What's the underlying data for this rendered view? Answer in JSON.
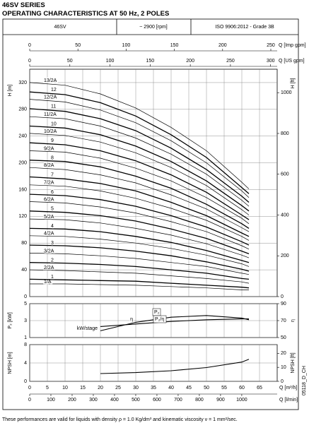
{
  "header": {
    "title": "46SV SERIES",
    "subtitle": "OPERATING CHARACTERISTICS AT 50 Hz, 2 POLES",
    "model": "46SV",
    "speed": "~ 2900 [rpm]",
    "standard": "ISO 9906:2012 - Grade 3B",
    "code": "05118_D_CH",
    "footnote": "These performances are valid for liquids with density ρ = 1.0 Kg/dm³ and kinematic viscosity ν = 1 mm²/sec."
  },
  "chart_data": [
    {
      "type": "line",
      "color": "#000",
      "xlim": [
        0,
        70
      ],
      "xticks": [
        0,
        5,
        10,
        15,
        20,
        25,
        30,
        35,
        40,
        45,
        50,
        55,
        60,
        65
      ],
      "ylabel": "H [m]",
      "ylim": [
        0,
        340
      ],
      "yticks": [
        0,
        40,
        80,
        120,
        160,
        200,
        240,
        280,
        320
      ],
      "y2label": "H [ft]",
      "y2lim": [
        0,
        1115
      ],
      "y2ticks": [
        0,
        200,
        400,
        600,
        800,
        1000
      ],
      "top_axes": [
        {
          "label": "Q [Imp gpm]",
          "xlim": [
            0,
            256.6
          ],
          "xticks": [
            0,
            50,
            100,
            150,
            200,
            250
          ]
        },
        {
          "label": "Q [US gpm]",
          "xlim": [
            0,
            308.2
          ],
          "xticks": [
            0,
            50,
            100,
            150,
            200,
            250,
            300
          ]
        }
      ],
      "x": [
        0,
        10,
        20,
        30,
        40,
        50,
        60,
        62
      ],
      "series": [
        {
          "name": "1/A",
          "values": [
            19,
            19,
            18,
            17,
            15,
            13,
            10,
            10
          ]
        },
        {
          "name": "1",
          "values": [
            26,
            25,
            24,
            23,
            20,
            17,
            14,
            13
          ]
        },
        {
          "name": "2/2A",
          "values": [
            40,
            39,
            37,
            35,
            31,
            27,
            22,
            20
          ]
        },
        {
          "name": "2",
          "values": [
            51,
            50,
            48,
            45,
            40,
            35,
            27,
            26
          ]
        },
        {
          "name": "3/2A",
          "values": [
            65,
            64,
            61,
            57,
            51,
            45,
            35,
            33
          ]
        },
        {
          "name": "3",
          "values": [
            77,
            76,
            73,
            68,
            61,
            52,
            41,
            38
          ]
        },
        {
          "name": "4/2A",
          "values": [
            91,
            90,
            86,
            80,
            72,
            62,
            49,
            45
          ]
        },
        {
          "name": "4",
          "values": [
            102,
            101,
            97,
            90,
            81,
            69,
            54,
            51
          ]
        },
        {
          "name": "5/2A",
          "values": [
            116,
            115,
            110,
            102,
            92,
            79,
            62,
            58
          ]
        },
        {
          "name": "5",
          "values": [
            128,
            126,
            121,
            113,
            101,
            87,
            68,
            64
          ]
        },
        {
          "name": "6/2A",
          "values": [
            142,
            140,
            134,
            125,
            112,
            97,
            76,
            71
          ]
        },
        {
          "name": "6",
          "values": [
            153,
            151,
            145,
            135,
            121,
            104,
            82,
            77
          ]
        },
        {
          "name": "7/2A",
          "values": [
            167,
            165,
            158,
            147,
            132,
            114,
            90,
            84
          ]
        },
        {
          "name": "7",
          "values": [
            179,
            176,
            169,
            158,
            141,
            121,
            95,
            90
          ]
        },
        {
          "name": "8/2A",
          "values": [
            193,
            190,
            182,
            170,
            152,
            131,
            103,
            97
          ]
        },
        {
          "name": "8",
          "values": [
            204,
            202,
            194,
            180,
            162,
            138,
            109,
            102
          ]
        },
        {
          "name": "9/2A",
          "values": [
            218,
            216,
            207,
            192,
            173,
            148,
            117,
            109
          ]
        },
        {
          "name": "9",
          "values": [
            230,
            227,
            218,
            203,
            182,
            156,
            122,
            115
          ]
        },
        {
          "name": "10/2A",
          "values": [
            244,
            241,
            231,
            215,
            193,
            166,
            130,
            122
          ]
        },
        {
          "name": "10",
          "values": [
            255,
            252,
            242,
            225,
            202,
            173,
            136,
            128
          ]
        },
        {
          "name": "11/2A",
          "values": [
            269,
            266,
            255,
            237,
            213,
            183,
            144,
            135
          ]
        },
        {
          "name": "11",
          "values": [
            281,
            277,
            266,
            248,
            222,
            190,
            150,
            141
          ]
        },
        {
          "name": "12/2A",
          "values": [
            295,
            291,
            279,
            260,
            233,
            200,
            158,
            148
          ]
        },
        {
          "name": "12",
          "values": [
            306,
            302,
            290,
            270,
            242,
            208,
            163,
            154
          ]
        },
        {
          "name": "13/2A",
          "values": [
            320,
            316,
            303,
            282,
            253,
            218,
            171,
            161
          ]
        }
      ]
    },
    {
      "type": "line",
      "color": "#000",
      "xlim": [
        0,
        70
      ],
      "xticks": [
        0,
        5,
        10,
        15,
        20,
        25,
        30,
        35,
        40,
        45,
        50,
        55,
        60,
        65
      ],
      "ylabel": "P₂ [kW]",
      "ylim": [
        1,
        5
      ],
      "yticks": [
        1,
        3,
        5
      ],
      "y2label": "η",
      "y2lim": [
        50,
        90
      ],
      "y2ticks": [
        50,
        70,
        90
      ],
      "x": [
        20,
        30,
        40,
        50,
        60,
        62
      ],
      "series": [
        {
          "name": "kW/stage",
          "values": [
            2.3,
            2.6,
            2.9,
            3.1,
            3.2,
            3.2
          ]
        },
        {
          "name": "η",
          "axis": "y2",
          "values": [
            58,
            68,
            74,
            76,
            73,
            71
          ]
        }
      ],
      "annotations": [
        "P₂",
        "P₂/η"
      ]
    },
    {
      "type": "line",
      "color": "#000",
      "xlim": [
        0,
        70
      ],
      "xticks": [
        0,
        5,
        10,
        15,
        20,
        25,
        30,
        35,
        40,
        45,
        50,
        55,
        60,
        65
      ],
      "xlabel": "Q [m³/h]",
      "x2label": "Q [l/min]",
      "x2lim": [
        0,
        1167
      ],
      "x2ticks": [
        0,
        100,
        200,
        300,
        400,
        500,
        600,
        700,
        800,
        900,
        1000
      ],
      "ylabel": "NPSH [m]",
      "ylim": [
        0,
        8
      ],
      "yticks": [
        0,
        4,
        8
      ],
      "y2label": "NPSH [ft]",
      "y2lim": [
        0,
        26.25
      ],
      "y2ticks": [
        0,
        10,
        20
      ],
      "x": [
        20,
        30,
        40,
        50,
        60,
        62
      ],
      "series": [
        {
          "name": "NPSH",
          "values": [
            1.7,
            1.9,
            2.3,
            3.0,
            4.2,
            4.8
          ]
        }
      ]
    }
  ]
}
